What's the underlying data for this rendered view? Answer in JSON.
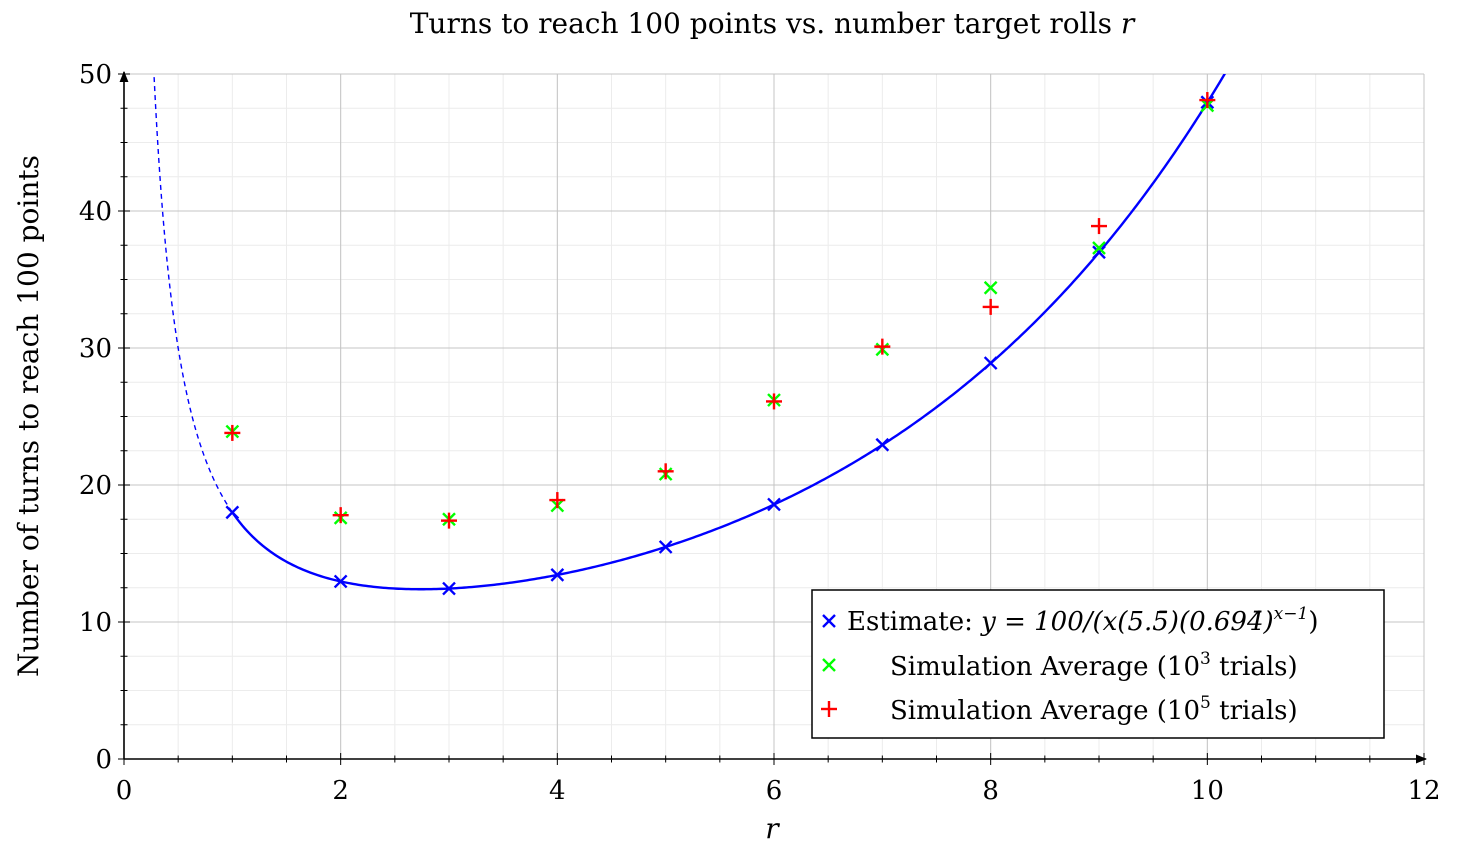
{
  "chart_data": {
    "type": "scatter",
    "title": "Turns to reach 100 points vs. number target rolls r",
    "title_main": "Turns to reach 100 points vs. number target rolls ",
    "title_var": "r",
    "xlabel": "r",
    "ylabel": "Number of turns to reach 100 points",
    "xlim": [
      0,
      12
    ],
    "ylim": [
      0,
      50
    ],
    "x_ticks": [
      0,
      2,
      4,
      6,
      8,
      10,
      12
    ],
    "y_ticks": [
      0,
      10,
      20,
      30,
      40,
      50
    ],
    "grid": true,
    "legend_position": "bottom-right",
    "series": [
      {
        "name": "Estimate: y = 100/(x(5.5̄)(0.694̄)^(x−1))",
        "type": "line+marker",
        "marker": "x",
        "color": "#0000ff",
        "x": [
          1,
          2,
          3,
          4,
          5,
          6,
          7,
          8,
          9,
          10
        ],
        "y": [
          18.0,
          12.96,
          12.44,
          13.44,
          15.48,
          18.58,
          22.94,
          28.9,
          36.99,
          47.94
        ]
      },
      {
        "name": "Simulation Average (10^3 trials)",
        "type": "scatter",
        "marker": "x",
        "color": "#00ff00",
        "x": [
          1,
          2,
          3,
          4,
          5,
          6,
          7,
          8,
          9,
          10
        ],
        "y": [
          23.9,
          17.6,
          17.5,
          18.5,
          20.8,
          26.2,
          29.9,
          34.4,
          37.3,
          47.7
        ]
      },
      {
        "name": "Simulation Average (10^5 trials)",
        "type": "scatter",
        "marker": "+",
        "color": "#ff0000",
        "x": [
          1,
          2,
          3,
          4,
          5,
          6,
          7,
          8,
          9,
          10
        ],
        "y": [
          23.8,
          17.8,
          17.4,
          18.9,
          21.0,
          26.1,
          30.1,
          33.0,
          38.9,
          48.1
        ]
      }
    ],
    "legend": {
      "estimate_prefix": "Estimate: ",
      "estimate_formula": "y = 100/(x(5.5̄)(0.694̄)",
      "estimate_exponent": "x−1",
      "sim3_text": "Simulation Average (10",
      "sim3_exp": "3",
      "sim3_suffix": " trials)",
      "sim5_text": "Simulation Average (10",
      "sim5_exp": "5",
      "sim5_suffix": " trials)"
    }
  }
}
